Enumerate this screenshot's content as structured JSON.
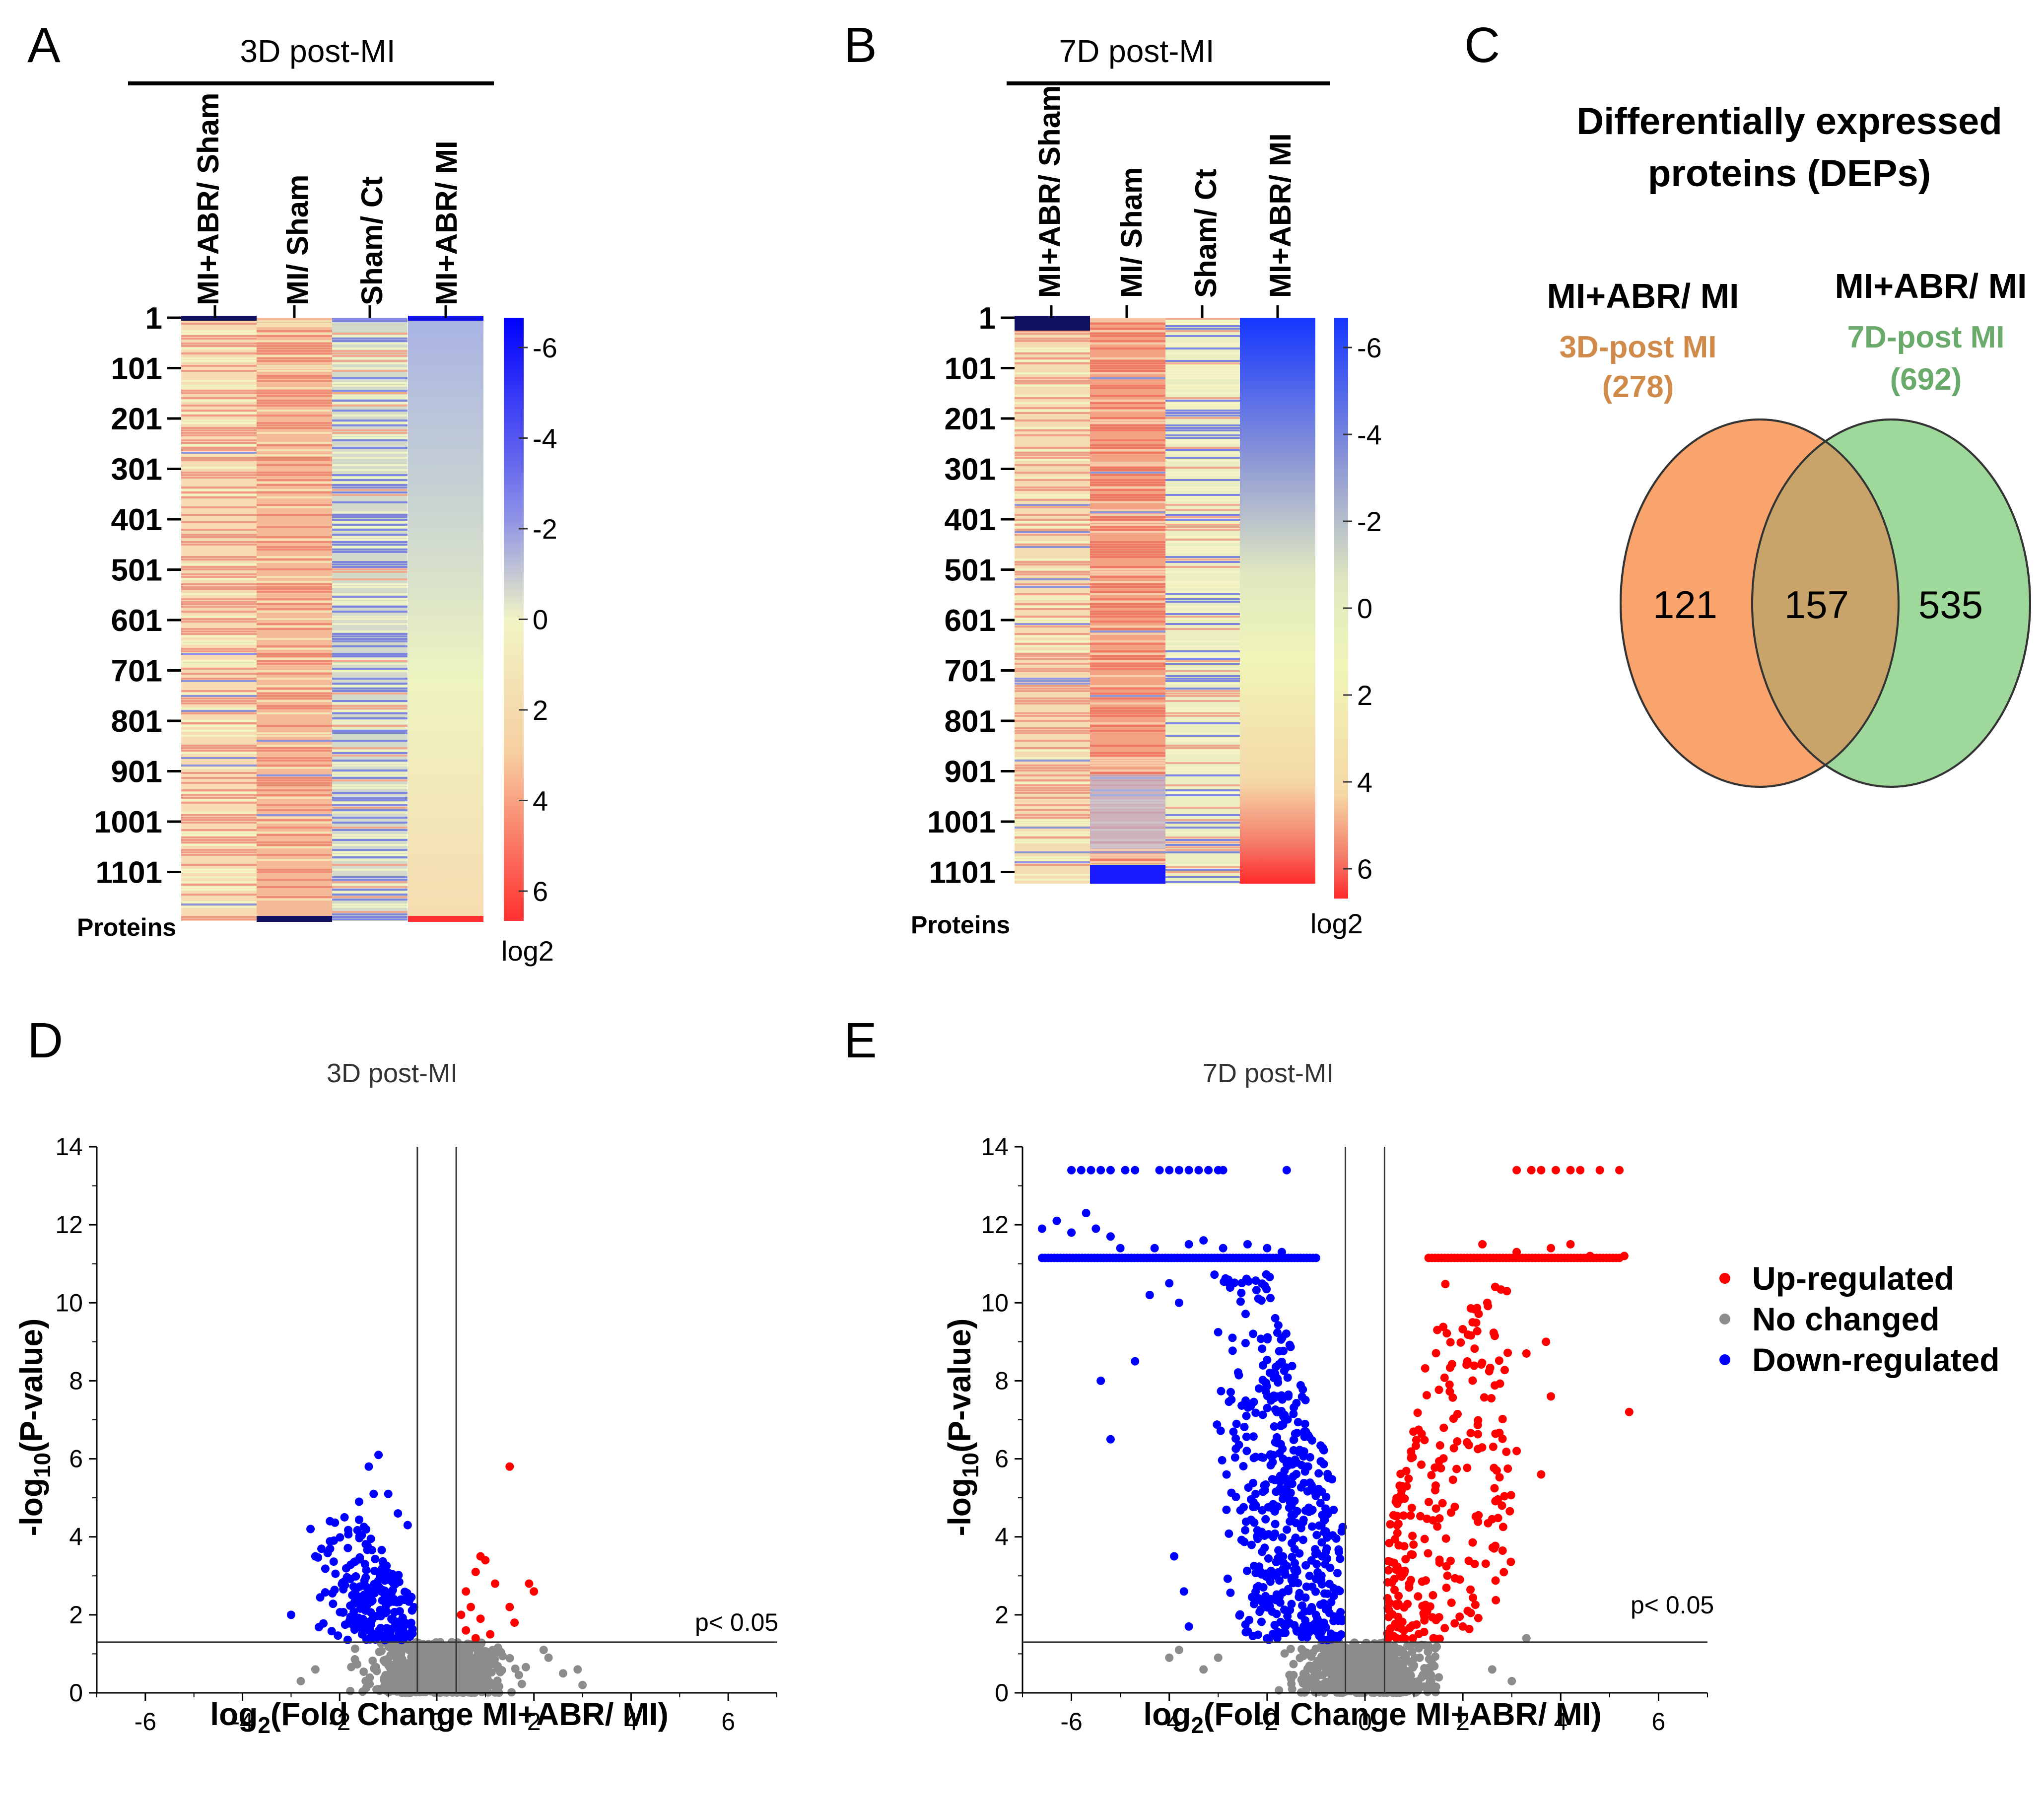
{
  "panels": {
    "A": "A",
    "B": "B",
    "C": "C",
    "D": "D",
    "E": "E"
  },
  "colors": {
    "up": "#ff0000",
    "none": "#8c8c8c",
    "down": "#0000ff",
    "venn_3d": "#f8a46c",
    "venn_7d": "#9ed89a",
    "venn_overlap": "#c8a46a",
    "text_3d": "#d08a4a",
    "text_7d": "#6aaa6a"
  },
  "heatmap_A": {
    "group_title": "3D post-MI",
    "columns": [
      "MI+ABR/ Sham",
      "MI/ Sham",
      "Sham/ Ct",
      "MI+ABR/ MI"
    ],
    "row_ticks": [
      "1",
      "101",
      "201",
      "301",
      "401",
      "501",
      "601",
      "701",
      "801",
      "901",
      "1001",
      "1101"
    ],
    "row_axis_label": "Proteins",
    "colorbar_ticks": [
      "-6",
      "-4",
      "-2",
      "0",
      "2",
      "4",
      "6"
    ],
    "colorbar_label": "log2"
  },
  "heatmap_B": {
    "group_title": "7D post-MI",
    "columns": [
      "MI+ABR/ Sham",
      "MI/ Sham",
      "Sham/ Ct",
      "MI+ABR/ MI"
    ],
    "row_ticks": [
      "1",
      "101",
      "201",
      "301",
      "401",
      "501",
      "601",
      "701",
      "801",
      "901",
      "1001",
      "1101"
    ],
    "row_axis_label": "Proteins",
    "colorbar_ticks": [
      "-6",
      "-4",
      "-2",
      "0",
      "2",
      "4",
      "6"
    ],
    "colorbar_label": "log2"
  },
  "venn": {
    "title_line1": "Differentially expressed",
    "title_line2": "proteins (DEPs)",
    "left": {
      "comparison": "MI+ABR/ MI",
      "group": "3D-post MI",
      "total": "(278)"
    },
    "right": {
      "comparison": "MI+ABR/ MI",
      "group": "7D-post MI",
      "total": "(692)"
    },
    "only_left": "121",
    "overlap": "157",
    "only_right": "535"
  },
  "legend": {
    "up": "Up-regulated",
    "none": "No changed",
    "down": "Down-regulated"
  },
  "chart_data": [
    {
      "type": "scatter",
      "panel": "D",
      "title": "3D post-MI",
      "xlabel_pre": "log",
      "xlabel_sub": "2",
      "xlabel_post": "(Fold Change MI+ABR/ MI)",
      "ylabel_pre": "-log",
      "ylabel_sub": "10",
      "ylabel_post": "(P-value)",
      "xlim": [
        -7,
        7
      ],
      "ylim": [
        0,
        14
      ],
      "xticks": [
        -6,
        -4,
        -2,
        0,
        2,
        4,
        6
      ],
      "yticks": [
        0,
        2,
        4,
        6,
        8,
        10,
        12,
        14
      ],
      "fc_lines": [
        -0.4,
        0.4
      ],
      "p_line": 1.3,
      "p_label": "p< 0.05",
      "up_points": [
        [
          1.5,
          5.8
        ],
        [
          0.9,
          3.5
        ],
        [
          1.0,
          3.4
        ],
        [
          0.8,
          3.1
        ],
        [
          1.2,
          2.8
        ],
        [
          0.6,
          2.6
        ],
        [
          1.9,
          2.8
        ],
        [
          2.0,
          2.6
        ],
        [
          0.7,
          2.2
        ],
        [
          0.5,
          2.0
        ],
        [
          1.5,
          2.2
        ],
        [
          0.9,
          1.9
        ],
        [
          1.6,
          1.8
        ],
        [
          0.6,
          1.6
        ],
        [
          1.1,
          1.5
        ],
        [
          0.8,
          1.4
        ]
      ],
      "down_series": {
        "n": 220,
        "x_range": [
          -2.5,
          -0.45
        ],
        "y_range": [
          1.35,
          4.5
        ],
        "seed": 7
      },
      "down_points": [
        [
          -1.2,
          6.1
        ],
        [
          -1.4,
          5.8
        ],
        [
          -1.0,
          5.1
        ],
        [
          -1.3,
          5.1
        ],
        [
          -1.6,
          4.9
        ],
        [
          -0.8,
          4.6
        ],
        [
          -1.9,
          4.5
        ],
        [
          -2.2,
          4.4
        ],
        [
          -2.6,
          4.2
        ],
        [
          -3.0,
          2.0
        ],
        [
          -2.5,
          3.5
        ],
        [
          -0.6,
          4.3
        ]
      ],
      "none_series": {
        "n": 700,
        "x_center": 0,
        "x_spread": 1.0,
        "y_max": 1.3,
        "seed": 11
      },
      "none_points": [
        [
          2.3,
          0.9
        ],
        [
          2.6,
          0.5
        ],
        [
          3.0,
          0.2
        ],
        [
          -2.5,
          0.6
        ],
        [
          -2.8,
          0.3
        ],
        [
          2.9,
          0.6
        ],
        [
          2.2,
          1.1
        ]
      ]
    },
    {
      "type": "scatter",
      "panel": "E",
      "title": "7D post-MI",
      "xlabel_pre": "log",
      "xlabel_sub": "2",
      "xlabel_post": "(Fold Change MI+ABR/ MI)",
      "ylabel_pre": "-log",
      "ylabel_sub": "10",
      "ylabel_post": "(P-value)",
      "xlim": [
        -7,
        7
      ],
      "ylim": [
        0,
        14
      ],
      "xticks": [
        -6,
        -4,
        -2,
        0,
        2,
        4,
        6
      ],
      "yticks": [
        0,
        2,
        4,
        6,
        8,
        10,
        12,
        14
      ],
      "fc_lines": [
        -0.4,
        0.4
      ],
      "p_line": 1.3,
      "p_label": "p< 0.05",
      "down_points": [
        [
          -6.0,
          13.4
        ],
        [
          -5.8,
          13.4
        ],
        [
          -5.6,
          13.4
        ],
        [
          -5.4,
          13.4
        ],
        [
          -5.2,
          13.4
        ],
        [
          -4.9,
          13.4
        ],
        [
          -4.7,
          13.4
        ],
        [
          -4.2,
          13.4
        ],
        [
          -4.0,
          13.4
        ],
        [
          -3.8,
          13.4
        ],
        [
          -3.6,
          13.4
        ],
        [
          -3.4,
          13.4
        ],
        [
          -3.2,
          13.4
        ],
        [
          -3.0,
          13.4
        ],
        [
          -2.9,
          13.4
        ],
        [
          -1.6,
          13.4
        ],
        [
          -6.6,
          11.9
        ],
        [
          -6.3,
          12.1
        ],
        [
          -6.0,
          11.8
        ],
        [
          -5.7,
          12.3
        ],
        [
          -5.5,
          11.9
        ],
        [
          -5.2,
          11.7
        ],
        [
          -5.0,
          11.4
        ],
        [
          -4.3,
          11.4
        ],
        [
          -3.6,
          11.5
        ],
        [
          -3.3,
          11.6
        ],
        [
          -2.9,
          11.4
        ],
        [
          -2.4,
          11.5
        ],
        [
          -2.0,
          11.4
        ],
        [
          -1.7,
          11.3
        ],
        [
          -4.4,
          10.2
        ],
        [
          -4.0,
          10.5
        ],
        [
          -3.8,
          10.0
        ],
        [
          -4.7,
          8.5
        ],
        [
          -5.4,
          8.0
        ],
        [
          -5.2,
          6.5
        ],
        [
          -3.9,
          3.5
        ],
        [
          -3.6,
          1.7
        ],
        [
          -3.7,
          2.6
        ]
      ],
      "down_band": {
        "y": 11.15,
        "x_from": -6.6,
        "x_to": -1.0,
        "n": 90
      },
      "down_series": {
        "n": 480,
        "x_range": [
          -3.2,
          -0.45
        ],
        "y_range": [
          1.35,
          10.8
        ],
        "seed": 21
      },
      "up_points": [
        [
          3.1,
          13.4
        ],
        [
          3.4,
          13.4
        ],
        [
          3.6,
          13.4
        ],
        [
          3.9,
          13.4
        ],
        [
          4.2,
          13.4
        ],
        [
          4.4,
          13.4
        ],
        [
          4.8,
          13.4
        ],
        [
          5.2,
          13.4
        ],
        [
          2.4,
          11.5
        ],
        [
          3.1,
          11.3
        ],
        [
          3.8,
          11.4
        ],
        [
          4.2,
          11.5
        ],
        [
          4.6,
          11.2
        ],
        [
          5.3,
          11.2
        ],
        [
          5.4,
          7.2
        ],
        [
          3.7,
          9.0
        ],
        [
          3.3,
          8.7
        ],
        [
          3.8,
          7.6
        ],
        [
          3.1,
          6.2
        ],
        [
          3.6,
          5.6
        ],
        [
          2.8,
          4.8
        ],
        [
          2.1,
          2.1
        ],
        [
          2.0,
          1.7
        ],
        [
          1.4,
          1.4
        ],
        [
          2.9,
          10.3
        ],
        [
          2.5,
          10.0
        ],
        [
          2.2,
          9.5
        ]
      ],
      "up_band": {
        "y": 11.15,
        "x_from": 1.3,
        "x_to": 5.2,
        "n": 60
      },
      "up_series": {
        "n": 250,
        "x_range": [
          0.45,
          3.0
        ],
        "y_range": [
          1.35,
          10.5
        ],
        "seed": 33
      },
      "none_series": {
        "n": 700,
        "x_center": 0,
        "x_spread": 1.0,
        "y_max": 1.3,
        "seed": 44
      },
      "none_points": [
        [
          -3.8,
          1.1
        ],
        [
          -4.0,
          0.9
        ],
        [
          -3.3,
          0.6
        ],
        [
          -3.0,
          0.9
        ],
        [
          3.3,
          1.4
        ],
        [
          2.6,
          0.6
        ],
        [
          3.0,
          0.3
        ]
      ]
    }
  ]
}
